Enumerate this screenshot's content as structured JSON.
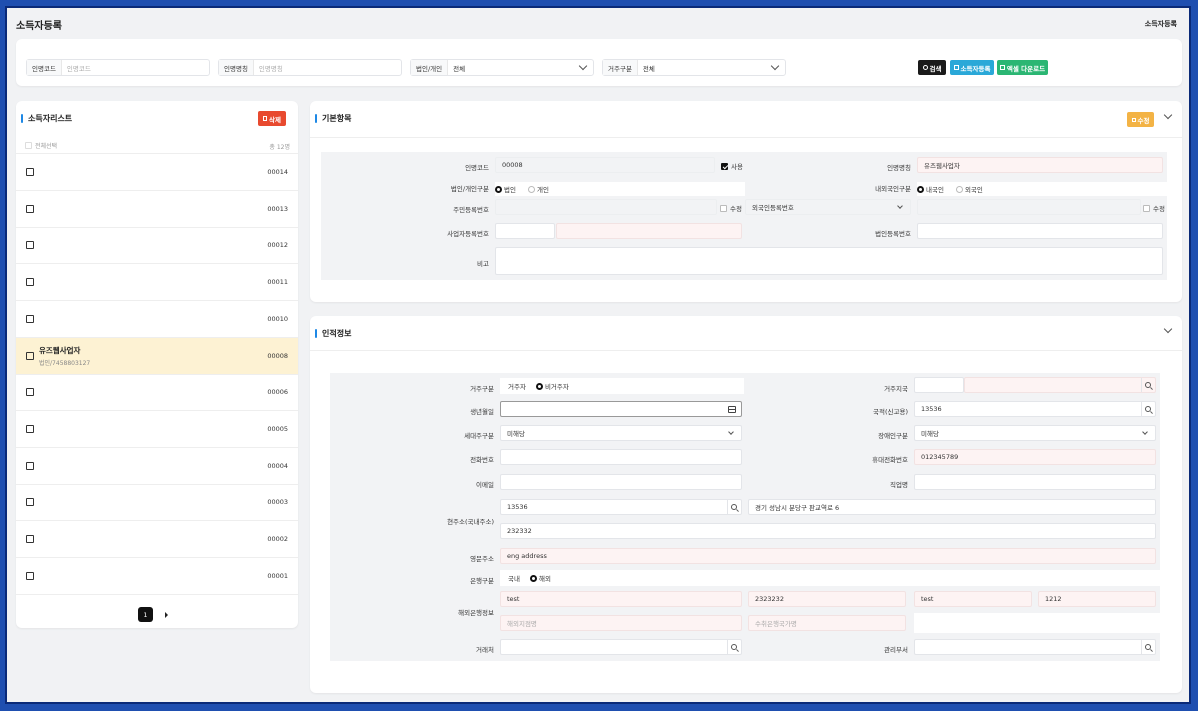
{
  "header": {
    "title": "소득자등록",
    "breadcrumb": "소득자등록"
  },
  "search": {
    "code_label": "인명코드",
    "code_placeholder": "인명코드",
    "name_label": "인명명칭",
    "name_placeholder": "인명명칭",
    "corp_label": "법인/개인",
    "corp_value": "전체",
    "res_label": "거주구분",
    "res_value": "전체",
    "btn_search": "검색",
    "btn_register": "소득자등록",
    "btn_excel": "엑셀 다운로드"
  },
  "list": {
    "title": "소득자리스트",
    "delete_label": "삭제",
    "select_all": "전체선택",
    "total": "총 12명",
    "rows": [
      {
        "code": "00014",
        "name": "",
        "sub": ""
      },
      {
        "code": "00013",
        "name": "",
        "sub": ""
      },
      {
        "code": "00012",
        "name": "",
        "sub": ""
      },
      {
        "code": "00011",
        "name": "",
        "sub": ""
      },
      {
        "code": "00010",
        "name": "",
        "sub": ""
      },
      {
        "code": "00008",
        "name": "유즈웹사업자",
        "sub": "법인/7458803127"
      },
      {
        "code": "00006",
        "name": "",
        "sub": ""
      },
      {
        "code": "00005",
        "name": "",
        "sub": ""
      },
      {
        "code": "00004",
        "name": "",
        "sub": ""
      },
      {
        "code": "00003",
        "name": "",
        "sub": ""
      },
      {
        "code": "00002",
        "name": "",
        "sub": ""
      },
      {
        "code": "00001",
        "name": "",
        "sub": ""
      }
    ],
    "page": "1"
  },
  "basic": {
    "title": "기본항목",
    "edit_label": "수정",
    "code_label": "인명코드",
    "code_value": "00008",
    "use_label": "사용",
    "name_label": "인명명칭",
    "name_value": "유즈웹사업자",
    "type_label": "법인/개인구분",
    "type_opt1": "법인",
    "type_opt2": "개인",
    "foreign_label": "내외국인구분",
    "foreign_opt1": "내국인",
    "foreign_opt2": "외국인",
    "rrn_label": "주민등록번호",
    "modify_label": "수정",
    "foreign_select": "외국인등록번호",
    "modify_label2": "수정",
    "biz_label": "사업자등록번호",
    "corp_no_label": "법인등록번호",
    "note_label": "비고"
  },
  "personal": {
    "title": "인적정보",
    "res_label": "거주구분",
    "res_opt1": "거주자",
    "res_opt2": "비거주자",
    "res_country_label": "거주지국",
    "birth_label": "생년월일",
    "nation_label": "국적(신고용)",
    "nation_value": "13536",
    "household_label": "세대주구분",
    "household_value": "미해당",
    "disabled_label": "장애인구분",
    "disabled_value": "미해당",
    "phone_label": "전화번호",
    "mobile_label": "휴대전화번호",
    "mobile_value": "012345789",
    "email_label": "이메일",
    "job_label": "직업명",
    "addr_label": "현주소(국내주소)",
    "zip_value": "13536",
    "addr1_value": "경기 성남시 분당구 판교역로 6",
    "addr2_value": "232332",
    "eng_label": "영문주소",
    "eng_value": "eng address",
    "bank_type_label": "은행구분",
    "bank_opt1": "국내",
    "bank_opt2": "해외",
    "overseas_label": "해외은행정보",
    "ob1": "test",
    "ob2": "2323232",
    "ob3": "test",
    "ob4": "1212",
    "ob_branch_ph": "해외지점명",
    "ob_country_ph": "수취은행국가명",
    "client_label": "거래처",
    "dept_label": "관리부서"
  },
  "colors": {
    "red": "#e84a2f",
    "orange": "#f3b345",
    "blue": "#2aa8d8",
    "green": "#2bb673",
    "dark": "#1a1a1a"
  }
}
